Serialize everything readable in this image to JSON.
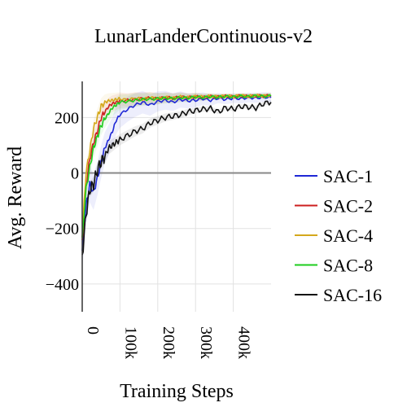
{
  "chart_data": {
    "type": "line",
    "title": "LunarLanderContinuous-v2",
    "xlabel": "Training Steps",
    "ylabel": "Avg. Reward",
    "xlim": [
      0,
      500000
    ],
    "ylim": [
      -500,
      330
    ],
    "x_ticks": [
      0,
      100000,
      200000,
      300000,
      400000
    ],
    "x_tick_labels": [
      "0",
      "100k",
      "200k",
      "300k",
      "400k"
    ],
    "y_ticks": [
      -400,
      -200,
      0,
      200
    ],
    "y_tick_labels": [
      "−400",
      "−200",
      "0",
      "200"
    ],
    "grid": true,
    "zero_line": true,
    "legend_position": "right",
    "x": [
      0,
      10000,
      20000,
      30000,
      40000,
      50000,
      60000,
      70000,
      80000,
      90000,
      100000,
      120000,
      140000,
      160000,
      180000,
      200000,
      220000,
      240000,
      260000,
      280000,
      300000,
      320000,
      340000,
      360000,
      380000,
      400000,
      420000,
      440000,
      460000,
      480000,
      500000
    ],
    "series": [
      {
        "name": "SAC-1",
        "color": "#1f28d6",
        "values": [
          -280,
          -120,
          -40,
          -70,
          -20,
          40,
          90,
          120,
          150,
          190,
          210,
          230,
          245,
          255,
          245,
          258,
          262,
          255,
          265,
          260,
          262,
          268,
          262,
          270,
          265,
          270,
          268,
          272,
          270,
          274,
          272
        ]
      },
      {
        "name": "SAC-2",
        "color": "#cc1f1f",
        "values": [
          -250,
          -50,
          50,
          110,
          150,
          200,
          220,
          240,
          250,
          255,
          260,
          262,
          265,
          268,
          270,
          268,
          272,
          270,
          274,
          272,
          275,
          273,
          276,
          274,
          277,
          275,
          278,
          276,
          278,
          277,
          279
        ]
      },
      {
        "name": "SAC-4",
        "color": "#d4a81c",
        "values": [
          -220,
          0,
          80,
          160,
          200,
          240,
          255,
          260,
          262,
          265,
          268,
          262,
          270,
          266,
          272,
          268,
          273,
          270,
          275,
          272,
          276,
          274,
          277,
          275,
          278,
          276,
          279,
          277,
          279,
          278,
          280
        ]
      },
      {
        "name": "SAC-8",
        "color": "#1ccc1c",
        "values": [
          -240,
          -60,
          20,
          90,
          130,
          170,
          195,
          215,
          235,
          245,
          255,
          258,
          262,
          265,
          266,
          268,
          270,
          268,
          272,
          270,
          274,
          272,
          275,
          273,
          276,
          274,
          277,
          275,
          278,
          276,
          278
        ]
      },
      {
        "name": "SAC-16",
        "color": "#111111",
        "values": [
          -300,
          -150,
          -60,
          -40,
          10,
          40,
          60,
          90,
          100,
          110,
          120,
          135,
          150,
          160,
          180,
          190,
          200,
          205,
          210,
          220,
          225,
          230,
          232,
          220,
          235,
          230,
          240,
          238,
          235,
          250,
          255
        ]
      }
    ]
  }
}
